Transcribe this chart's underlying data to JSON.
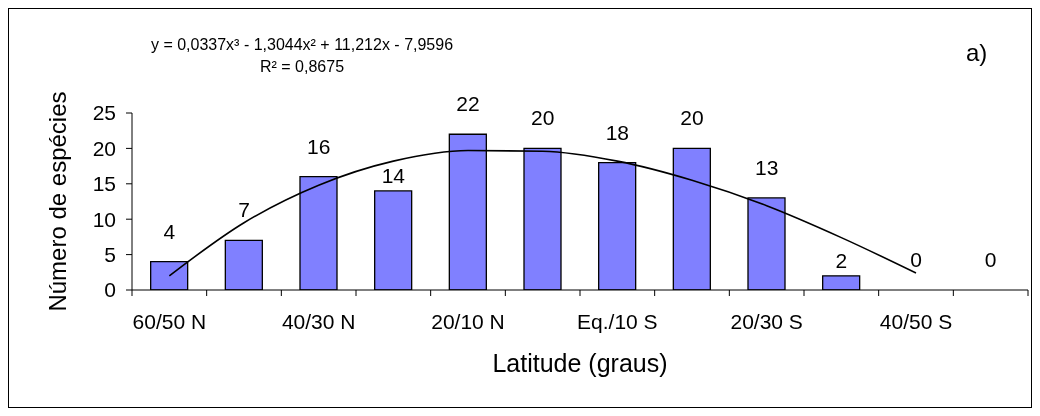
{
  "chart_data": {
    "type": "bar",
    "title": "a)",
    "xlabel": "Latitude (graus)",
    "ylabel": "Número de espécies",
    "annotations": [
      "y = 0,0337x³ - 1,3044x² + 11,212x - 7,9596",
      "R² = 0,8675"
    ],
    "categories": [
      "60/50 N",
      null,
      "40/30 N",
      null,
      "20/10 N",
      null,
      "Eq./10 S",
      null,
      "20/30 S",
      null,
      "40/50 S",
      null
    ],
    "series": [
      {
        "color": "#8080ff",
        "values": [
          4,
          7,
          16,
          14,
          22,
          20,
          18,
          20,
          13,
          2,
          0,
          0
        ],
        "value_labels": [
          "4",
          "7",
          "16",
          "14",
          "22",
          "20",
          "18",
          "20",
          "13",
          "2",
          "0",
          "0"
        ]
      },
      {
        "type": "line",
        "color": "#000000",
        "values": [
          2.0,
          9.5,
          14.8,
          18.2,
          19.7,
          19.6,
          18.2,
          15.5,
          11.9,
          7.4,
          2.4,
          null
        ]
      }
    ],
    "ylim": [
      0,
      25
    ],
    "yticks": [
      0,
      5,
      10,
      15,
      20,
      25
    ]
  }
}
